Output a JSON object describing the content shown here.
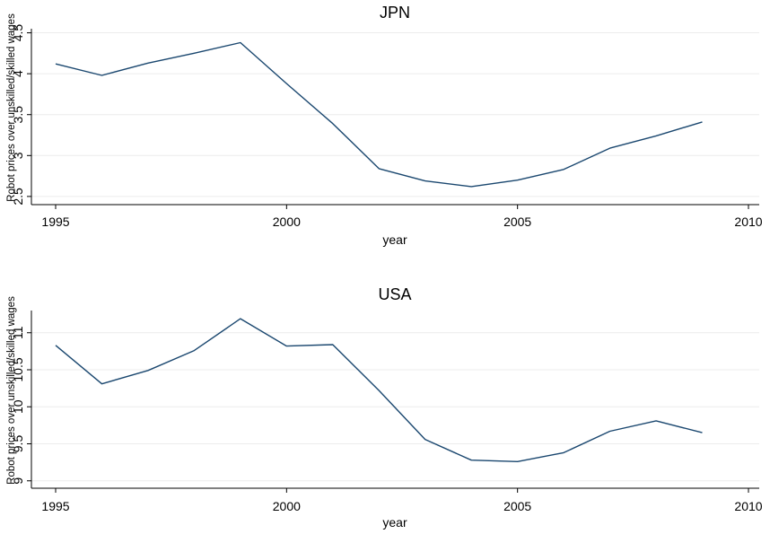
{
  "chart_data": [
    {
      "type": "line",
      "title": "JPN",
      "xlabel": "year",
      "ylabel": "Robot prices over unskilled/skilled wages",
      "xlim": [
        1995,
        2010
      ],
      "ylim": [
        2.4,
        4.55
      ],
      "xticks": [
        1995,
        2000,
        2005,
        2010
      ],
      "yticks": [
        2.5,
        3,
        3.5,
        4,
        4.5
      ],
      "ytick_labels": [
        "2.5",
        "3",
        "3.5",
        "4",
        "4.5"
      ],
      "grid": true,
      "series": [
        {
          "color": "#1a476f",
          "x": [
            1995,
            1996,
            1997,
            1998,
            1999,
            2000,
            2001,
            2002,
            2003,
            2004,
            2005,
            2006,
            2007,
            2008,
            2009
          ],
          "values": [
            4.12,
            3.98,
            4.13,
            4.25,
            4.38,
            3.88,
            3.39,
            2.84,
            2.69,
            2.62,
            2.7,
            2.83,
            3.09,
            3.24,
            3.41
          ]
        }
      ]
    },
    {
      "type": "line",
      "title": "USA",
      "xlabel": "year",
      "ylabel": "Robot prices over unskilled/skilled wages",
      "xlim": [
        1995,
        2010
      ],
      "ylim": [
        8.9,
        11.3
      ],
      "xticks": [
        1995,
        2000,
        2005,
        2010
      ],
      "yticks": [
        9,
        9.5,
        10,
        10.5,
        11
      ],
      "ytick_labels": [
        "9",
        "9.5",
        "10",
        "10.5",
        "11"
      ],
      "grid": true,
      "series": [
        {
          "color": "#1a476f",
          "x": [
            1995,
            1996,
            1997,
            1998,
            1999,
            2000,
            2001,
            2002,
            2003,
            2004,
            2005,
            2006,
            2007,
            2008,
            2009
          ],
          "values": [
            10.83,
            10.31,
            10.49,
            10.76,
            11.19,
            10.82,
            10.84,
            10.22,
            9.56,
            9.28,
            9.26,
            9.38,
            9.67,
            9.81,
            9.65
          ]
        }
      ]
    }
  ]
}
